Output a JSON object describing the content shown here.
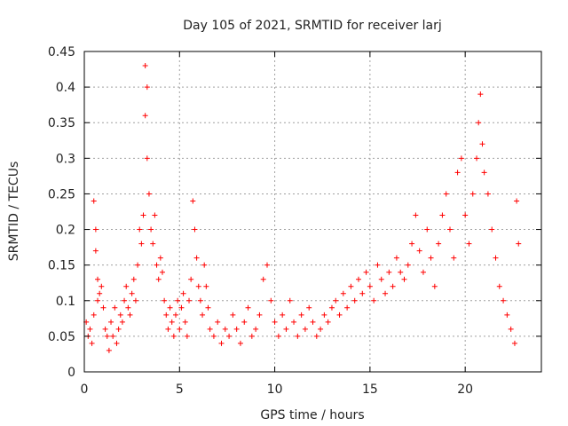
{
  "chart_data": {
    "type": "scatter",
    "title": "Day 105 of 2021, SRMTID for receiver larj",
    "xlabel": "GPS time / hours",
    "ylabel": "SRMTID / TECUs",
    "xlim": [
      0,
      24
    ],
    "ylim": [
      0,
      0.45
    ],
    "xticks": [
      "0",
      "5",
      "10",
      "15",
      "20"
    ],
    "yticks": [
      "0",
      "0.05",
      "0.1",
      "0.15",
      "0.2",
      "0.25",
      "0.3",
      "0.35",
      "0.4",
      "0.45"
    ],
    "grid": true,
    "marker": "+",
    "color": "#ff0000",
    "series": [
      {
        "name": "SRMTID",
        "points": [
          [
            0.1,
            0.07
          ],
          [
            0.2,
            0.05
          ],
          [
            0.3,
            0.06
          ],
          [
            0.4,
            0.04
          ],
          [
            0.5,
            0.08
          ],
          [
            0.5,
            0.24
          ],
          [
            0.6,
            0.2
          ],
          [
            0.6,
            0.17
          ],
          [
            0.7,
            0.13
          ],
          [
            0.7,
            0.1
          ],
          [
            0.8,
            0.11
          ],
          [
            0.9,
            0.12
          ],
          [
            1.0,
            0.09
          ],
          [
            1.1,
            0.06
          ],
          [
            1.2,
            0.05
          ],
          [
            1.3,
            0.03
          ],
          [
            1.4,
            0.07
          ],
          [
            1.5,
            0.05
          ],
          [
            1.6,
            0.09
          ],
          [
            1.7,
            0.04
          ],
          [
            1.8,
            0.06
          ],
          [
            1.9,
            0.08
          ],
          [
            2.0,
            0.07
          ],
          [
            2.1,
            0.1
          ],
          [
            2.2,
            0.12
          ],
          [
            2.3,
            0.09
          ],
          [
            2.4,
            0.08
          ],
          [
            2.5,
            0.11
          ],
          [
            2.6,
            0.13
          ],
          [
            2.7,
            0.1
          ],
          [
            2.8,
            0.15
          ],
          [
            2.9,
            0.2
          ],
          [
            3.0,
            0.18
          ],
          [
            3.1,
            0.22
          ],
          [
            3.2,
            0.36
          ],
          [
            3.2,
            0.43
          ],
          [
            3.3,
            0.4
          ],
          [
            3.3,
            0.3
          ],
          [
            3.4,
            0.25
          ],
          [
            3.5,
            0.2
          ],
          [
            3.6,
            0.18
          ],
          [
            3.7,
            0.22
          ],
          [
            3.8,
            0.15
          ],
          [
            3.9,
            0.13
          ],
          [
            4.0,
            0.16
          ],
          [
            4.1,
            0.14
          ],
          [
            4.2,
            0.1
          ],
          [
            4.3,
            0.08
          ],
          [
            4.4,
            0.06
          ],
          [
            4.5,
            0.09
          ],
          [
            4.6,
            0.07
          ],
          [
            4.7,
            0.05
          ],
          [
            4.8,
            0.08
          ],
          [
            4.9,
            0.1
          ],
          [
            5.0,
            0.06
          ],
          [
            5.1,
            0.09
          ],
          [
            5.2,
            0.11
          ],
          [
            5.3,
            0.07
          ],
          [
            5.4,
            0.05
          ],
          [
            5.5,
            0.1
          ],
          [
            5.6,
            0.13
          ],
          [
            5.7,
            0.24
          ],
          [
            5.8,
            0.2
          ],
          [
            5.9,
            0.16
          ],
          [
            6.0,
            0.12
          ],
          [
            6.1,
            0.1
          ],
          [
            6.2,
            0.08
          ],
          [
            6.3,
            0.15
          ],
          [
            6.4,
            0.12
          ],
          [
            6.5,
            0.09
          ],
          [
            6.6,
            0.06
          ],
          [
            6.8,
            0.05
          ],
          [
            7.0,
            0.07
          ],
          [
            7.2,
            0.04
          ],
          [
            7.4,
            0.06
          ],
          [
            7.6,
            0.05
          ],
          [
            7.8,
            0.08
          ],
          [
            8.0,
            0.06
          ],
          [
            8.2,
            0.04
          ],
          [
            8.4,
            0.07
          ],
          [
            8.6,
            0.09
          ],
          [
            8.8,
            0.05
          ],
          [
            9.0,
            0.06
          ],
          [
            9.2,
            0.08
          ],
          [
            9.4,
            0.13
          ],
          [
            9.6,
            0.15
          ],
          [
            9.8,
            0.1
          ],
          [
            10.0,
            0.07
          ],
          [
            10.2,
            0.05
          ],
          [
            10.4,
            0.08
          ],
          [
            10.6,
            0.06
          ],
          [
            10.8,
            0.1
          ],
          [
            11.0,
            0.07
          ],
          [
            11.2,
            0.05
          ],
          [
            11.4,
            0.08
          ],
          [
            11.6,
            0.06
          ],
          [
            11.8,
            0.09
          ],
          [
            12.0,
            0.07
          ],
          [
            12.2,
            0.05
          ],
          [
            12.4,
            0.06
          ],
          [
            12.6,
            0.08
          ],
          [
            12.8,
            0.07
          ],
          [
            13.0,
            0.09
          ],
          [
            13.2,
            0.1
          ],
          [
            13.4,
            0.08
          ],
          [
            13.6,
            0.11
          ],
          [
            13.8,
            0.09
          ],
          [
            14.0,
            0.12
          ],
          [
            14.2,
            0.1
          ],
          [
            14.4,
            0.13
          ],
          [
            14.6,
            0.11
          ],
          [
            14.8,
            0.14
          ],
          [
            15.0,
            0.12
          ],
          [
            15.2,
            0.1
          ],
          [
            15.4,
            0.15
          ],
          [
            15.6,
            0.13
          ],
          [
            15.8,
            0.11
          ],
          [
            16.0,
            0.14
          ],
          [
            16.2,
            0.12
          ],
          [
            16.4,
            0.16
          ],
          [
            16.6,
            0.14
          ],
          [
            16.8,
            0.13
          ],
          [
            17.0,
            0.15
          ],
          [
            17.2,
            0.18
          ],
          [
            17.4,
            0.22
          ],
          [
            17.6,
            0.17
          ],
          [
            17.8,
            0.14
          ],
          [
            18.0,
            0.2
          ],
          [
            18.2,
            0.16
          ],
          [
            18.4,
            0.12
          ],
          [
            18.6,
            0.18
          ],
          [
            18.8,
            0.22
          ],
          [
            19.0,
            0.25
          ],
          [
            19.2,
            0.2
          ],
          [
            19.4,
            0.16
          ],
          [
            19.6,
            0.28
          ],
          [
            19.8,
            0.3
          ],
          [
            20.0,
            0.22
          ],
          [
            20.2,
            0.18
          ],
          [
            20.4,
            0.25
          ],
          [
            20.6,
            0.3
          ],
          [
            20.7,
            0.35
          ],
          [
            20.8,
            0.39
          ],
          [
            20.9,
            0.32
          ],
          [
            21.0,
            0.28
          ],
          [
            21.2,
            0.25
          ],
          [
            21.4,
            0.2
          ],
          [
            21.6,
            0.16
          ],
          [
            21.8,
            0.12
          ],
          [
            22.0,
            0.1
          ],
          [
            22.2,
            0.08
          ],
          [
            22.4,
            0.06
          ],
          [
            22.6,
            0.04
          ],
          [
            22.7,
            0.24
          ],
          [
            22.8,
            0.18
          ]
        ]
      }
    ]
  }
}
